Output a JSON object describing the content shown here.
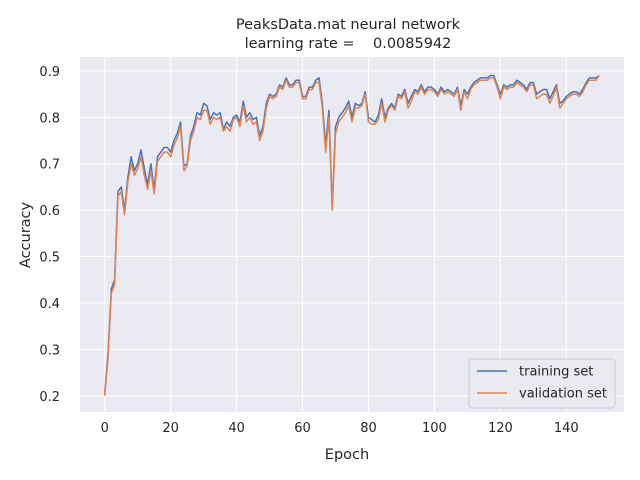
{
  "chart_data": {
    "type": "line",
    "title_line1": "PeaksData.mat neural network",
    "title_line2": "learning rate =    0.0085942",
    "xlabel": "Epoch",
    "ylabel": "Accuracy",
    "xlim": [
      -7.5,
      157.5
    ],
    "ylim": [
      0.165,
      0.93
    ],
    "xticks": [
      0,
      20,
      40,
      60,
      80,
      100,
      120,
      140
    ],
    "yticks": [
      0.2,
      0.3,
      0.4,
      0.5,
      0.6,
      0.7,
      0.8,
      0.9
    ],
    "grid": true,
    "legend_position": "lower right",
    "series": [
      {
        "name": "training set",
        "color": "#4c72b0",
        "values": [
          0.205,
          0.29,
          0.43,
          0.45,
          0.64,
          0.65,
          0.6,
          0.67,
          0.715,
          0.685,
          0.7,
          0.73,
          0.69,
          0.655,
          0.7,
          0.645,
          0.715,
          0.725,
          0.735,
          0.735,
          0.725,
          0.75,
          0.765,
          0.79,
          0.695,
          0.7,
          0.76,
          0.78,
          0.81,
          0.805,
          0.83,
          0.825,
          0.795,
          0.81,
          0.805,
          0.81,
          0.775,
          0.79,
          0.78,
          0.8,
          0.805,
          0.79,
          0.835,
          0.8,
          0.81,
          0.795,
          0.8,
          0.76,
          0.78,
          0.83,
          0.85,
          0.845,
          0.85,
          0.87,
          0.865,
          0.885,
          0.87,
          0.87,
          0.88,
          0.88,
          0.845,
          0.845,
          0.865,
          0.865,
          0.88,
          0.885,
          0.83,
          0.74,
          0.815,
          0.605,
          0.78,
          0.8,
          0.81,
          0.82,
          0.835,
          0.8,
          0.83,
          0.825,
          0.83,
          0.855,
          0.8,
          0.795,
          0.79,
          0.805,
          0.84,
          0.8,
          0.82,
          0.83,
          0.82,
          0.85,
          0.845,
          0.86,
          0.83,
          0.845,
          0.86,
          0.855,
          0.87,
          0.855,
          0.865,
          0.865,
          0.86,
          0.85,
          0.865,
          0.855,
          0.86,
          0.855,
          0.85,
          0.865,
          0.825,
          0.86,
          0.85,
          0.865,
          0.875,
          0.88,
          0.885,
          0.885,
          0.885,
          0.89,
          0.89,
          0.87,
          0.85,
          0.87,
          0.865,
          0.87,
          0.87,
          0.88,
          0.875,
          0.87,
          0.86,
          0.875,
          0.875,
          0.85,
          0.855,
          0.86,
          0.86,
          0.84,
          0.855,
          0.87,
          0.83,
          0.835,
          0.845,
          0.85,
          0.855,
          0.855,
          0.85,
          0.86,
          0.875,
          0.885,
          0.885,
          0.885,
          0.89
        ]
      },
      {
        "name": "validation set",
        "color": "#dd8452",
        "values": [
          0.2,
          0.28,
          0.42,
          0.44,
          0.63,
          0.64,
          0.59,
          0.66,
          0.7,
          0.675,
          0.69,
          0.715,
          0.675,
          0.645,
          0.685,
          0.635,
          0.705,
          0.715,
          0.725,
          0.725,
          0.715,
          0.74,
          0.755,
          0.78,
          0.685,
          0.695,
          0.75,
          0.77,
          0.8,
          0.795,
          0.815,
          0.815,
          0.785,
          0.8,
          0.795,
          0.8,
          0.77,
          0.78,
          0.77,
          0.795,
          0.8,
          0.78,
          0.825,
          0.79,
          0.8,
          0.785,
          0.79,
          0.75,
          0.77,
          0.82,
          0.845,
          0.84,
          0.845,
          0.865,
          0.86,
          0.88,
          0.865,
          0.865,
          0.875,
          0.875,
          0.84,
          0.84,
          0.86,
          0.86,
          0.875,
          0.875,
          0.82,
          0.725,
          0.8,
          0.6,
          0.765,
          0.79,
          0.8,
          0.81,
          0.825,
          0.79,
          0.82,
          0.82,
          0.825,
          0.85,
          0.79,
          0.785,
          0.785,
          0.795,
          0.83,
          0.79,
          0.815,
          0.825,
          0.815,
          0.845,
          0.84,
          0.855,
          0.82,
          0.835,
          0.855,
          0.85,
          0.865,
          0.85,
          0.86,
          0.86,
          0.855,
          0.845,
          0.86,
          0.85,
          0.855,
          0.85,
          0.845,
          0.86,
          0.815,
          0.855,
          0.84,
          0.86,
          0.87,
          0.875,
          0.88,
          0.88,
          0.88,
          0.885,
          0.885,
          0.865,
          0.84,
          0.865,
          0.86,
          0.865,
          0.865,
          0.875,
          0.87,
          0.865,
          0.855,
          0.87,
          0.87,
          0.84,
          0.845,
          0.85,
          0.85,
          0.83,
          0.845,
          0.865,
          0.82,
          0.83,
          0.84,
          0.845,
          0.85,
          0.85,
          0.845,
          0.855,
          0.87,
          0.88,
          0.88,
          0.88,
          0.89
        ]
      }
    ]
  }
}
